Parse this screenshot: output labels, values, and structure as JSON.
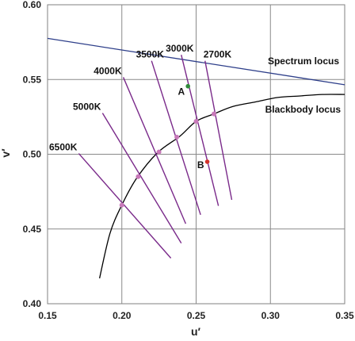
{
  "chart_data": {
    "type": "line",
    "title": "",
    "xlabel": "u′",
    "ylabel": "v′",
    "xlim": [
      0.15,
      0.35
    ],
    "ylim": [
      0.4,
      0.6
    ],
    "xticks": [
      "0.15",
      "0.20",
      "0.25",
      "0.30",
      "0.35"
    ],
    "yticks": [
      "0.40",
      "0.45",
      "0.50",
      "0.55",
      "0.60"
    ],
    "grid": true,
    "colors": {
      "spectrum": "#2e3f8a",
      "blackbody": "#000000",
      "isotherm": "#7a2a8a",
      "cct_point": "#c879b9",
      "point_a": "#2f8a3a",
      "point_b": "#d4332b"
    },
    "curves": {
      "spectrum_locus": {
        "label": "Spectrum locus",
        "x": [
          0.15,
          0.35
        ],
        "y": [
          0.5775,
          0.5465
        ]
      },
      "blackbody_locus": {
        "label": "Blackbody locus",
        "x": [
          0.185,
          0.192,
          0.2,
          0.21,
          0.224,
          0.239,
          0.25,
          0.262,
          0.275,
          0.29,
          0.305,
          0.32,
          0.335,
          0.35
        ],
        "y": [
          0.417,
          0.447,
          0.466,
          0.484,
          0.501,
          0.512,
          0.522,
          0.527,
          0.532,
          0.535,
          0.538,
          0.539,
          0.54,
          0.54
        ]
      }
    },
    "isotherms": [
      {
        "label": "6500K",
        "x": [
          0.171,
          0.233
        ],
        "y": [
          0.5005,
          0.4305
        ]
      },
      {
        "label": "5000K",
        "x": [
          0.187,
          0.24
        ],
        "y": [
          0.5275,
          0.4405
        ]
      },
      {
        "label": "4000K",
        "x": [
          0.201,
          0.243
        ],
        "y": [
          0.5515,
          0.4535
        ]
      },
      {
        "label": "3500K",
        "x": [
          0.22,
          0.253
        ],
        "y": [
          0.5625,
          0.4595
        ]
      },
      {
        "label": "3000K",
        "x": [
          0.24,
          0.265
        ],
        "y": [
          0.5665,
          0.4655
        ]
      },
      {
        "label": "2700K",
        "x": [
          0.256,
          0.274
        ],
        "y": [
          0.5625,
          0.4695
        ]
      }
    ],
    "cct_points": [
      {
        "x": 0.2,
        "y": 0.466
      },
      {
        "x": 0.211,
        "y": 0.485
      },
      {
        "x": 0.225,
        "y": 0.5015
      },
      {
        "x": 0.237,
        "y": 0.5115
      },
      {
        "x": 0.25,
        "y": 0.522
      },
      {
        "x": 0.262,
        "y": 0.527
      }
    ],
    "points": [
      {
        "label": "A",
        "x": 0.2445,
        "y": 0.5455
      },
      {
        "label": "B",
        "x": 0.2575,
        "y": 0.495
      }
    ]
  }
}
